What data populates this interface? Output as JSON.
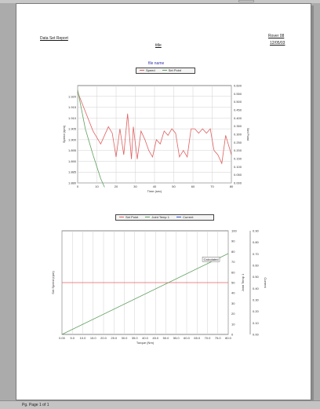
{
  "report": {
    "title": "Data Set Report",
    "subtitle": "title",
    "right_label": "Rover 08",
    "right_value": "12/05/03"
  },
  "chart1_title": "file name",
  "chart1_legend": [
    "Speed",
    "Set Point"
  ],
  "chart2_legend": [
    "Set Point",
    "Joint Temp 1",
    "Current"
  ],
  "chart2_annotation": "Calculated",
  "status_text": "Pg. Page 1 of 1",
  "colors": {
    "series_red": "#e06060",
    "series_green": "#60a060",
    "grid": "#d0d0d0"
  },
  "chart_data": [
    {
      "type": "line",
      "title": "",
      "xlabel": "Time (sec)",
      "ylabel": "Speed (rpm)",
      "y2label": "Set Point",
      "xlim": [
        0,
        80
      ],
      "ylim": [
        1.88,
        1.925
      ],
      "x_ticks": [
        "0",
        "10",
        "20",
        "30",
        "40",
        "50",
        "60",
        "70",
        "80"
      ],
      "y_ticks": [
        "1.880",
        "1.885",
        "1.890",
        "1.895",
        "1.900",
        "1.905",
        "1.910",
        "1.915",
        "1.920"
      ],
      "y2_ticks": [
        "0.000",
        "0.050",
        "0.100",
        "0.150",
        "0.200",
        "0.250",
        "0.300",
        "0.350",
        "0.400",
        "0.450",
        "0.500",
        "0.550",
        "0.600"
      ],
      "series": [
        {
          "name": "Speed",
          "color": "#e06060",
          "x": [
            0,
            4,
            8,
            12,
            16,
            18,
            20,
            22,
            24,
            26,
            28,
            29,
            31,
            33,
            35,
            37,
            39,
            41,
            43,
            45,
            47,
            49,
            51,
            53,
            55,
            57,
            59,
            61,
            63,
            65,
            67,
            69,
            71,
            73,
            75,
            77,
            79,
            80
          ],
          "y": [
            1.922,
            1.913,
            1.904,
            1.898,
            1.906,
            1.903,
            1.892,
            1.905,
            1.893,
            1.912,
            1.891,
            1.906,
            1.891,
            1.904,
            1.9,
            1.895,
            1.892,
            1.9,
            1.898,
            1.904,
            1.902,
            1.905,
            1.903,
            1.892,
            1.895,
            1.892,
            1.905,
            1.905,
            1.903,
            1.905,
            1.903,
            1.905,
            1.895,
            1.893,
            1.889,
            1.902,
            1.896,
            1.893
          ]
        },
        {
          "name": "Set Point",
          "color": "#60a060",
          "x": [
            0,
            4,
            8,
            12,
            14
          ],
          "y": [
            1.923,
            1.905,
            1.893,
            1.882,
            1.878
          ]
        }
      ]
    },
    {
      "type": "line",
      "title": "",
      "xlabel": "Torque (Nm)",
      "ylabel": "Set Speed (rpm)",
      "y2label": "Joint Temp 1",
      "y3label": "Current",
      "xlim": [
        0,
        100
      ],
      "ylim": [
        0,
        100
      ],
      "x_ticks": [
        "0.00",
        "5.0",
        "10.0",
        "15.0",
        "20.0",
        "25.0",
        "30.0",
        "35.0",
        "40.0",
        "45.0",
        "50.0",
        "55.0",
        "60.0",
        "65.0",
        "70.0",
        "75.0",
        "80.0"
      ],
      "y2_ticks": [
        "0",
        "10",
        "20",
        "30",
        "40",
        "50",
        "60",
        "70",
        "80",
        "90",
        "100"
      ],
      "y3_ticks": [
        "0.00",
        "0.10",
        "0.20",
        "0.30",
        "0.40",
        "0.50",
        "0.60",
        "0.70",
        "0.80",
        "0.90"
      ],
      "series": [
        {
          "name": "Set Point",
          "color": "#e06060",
          "x": [
            0,
            100
          ],
          "y": [
            50,
            50
          ]
        },
        {
          "name": "Joint Temp 1",
          "color": "#60a060",
          "x": [
            0,
            100
          ],
          "y": [
            0,
            78
          ]
        }
      ]
    }
  ]
}
